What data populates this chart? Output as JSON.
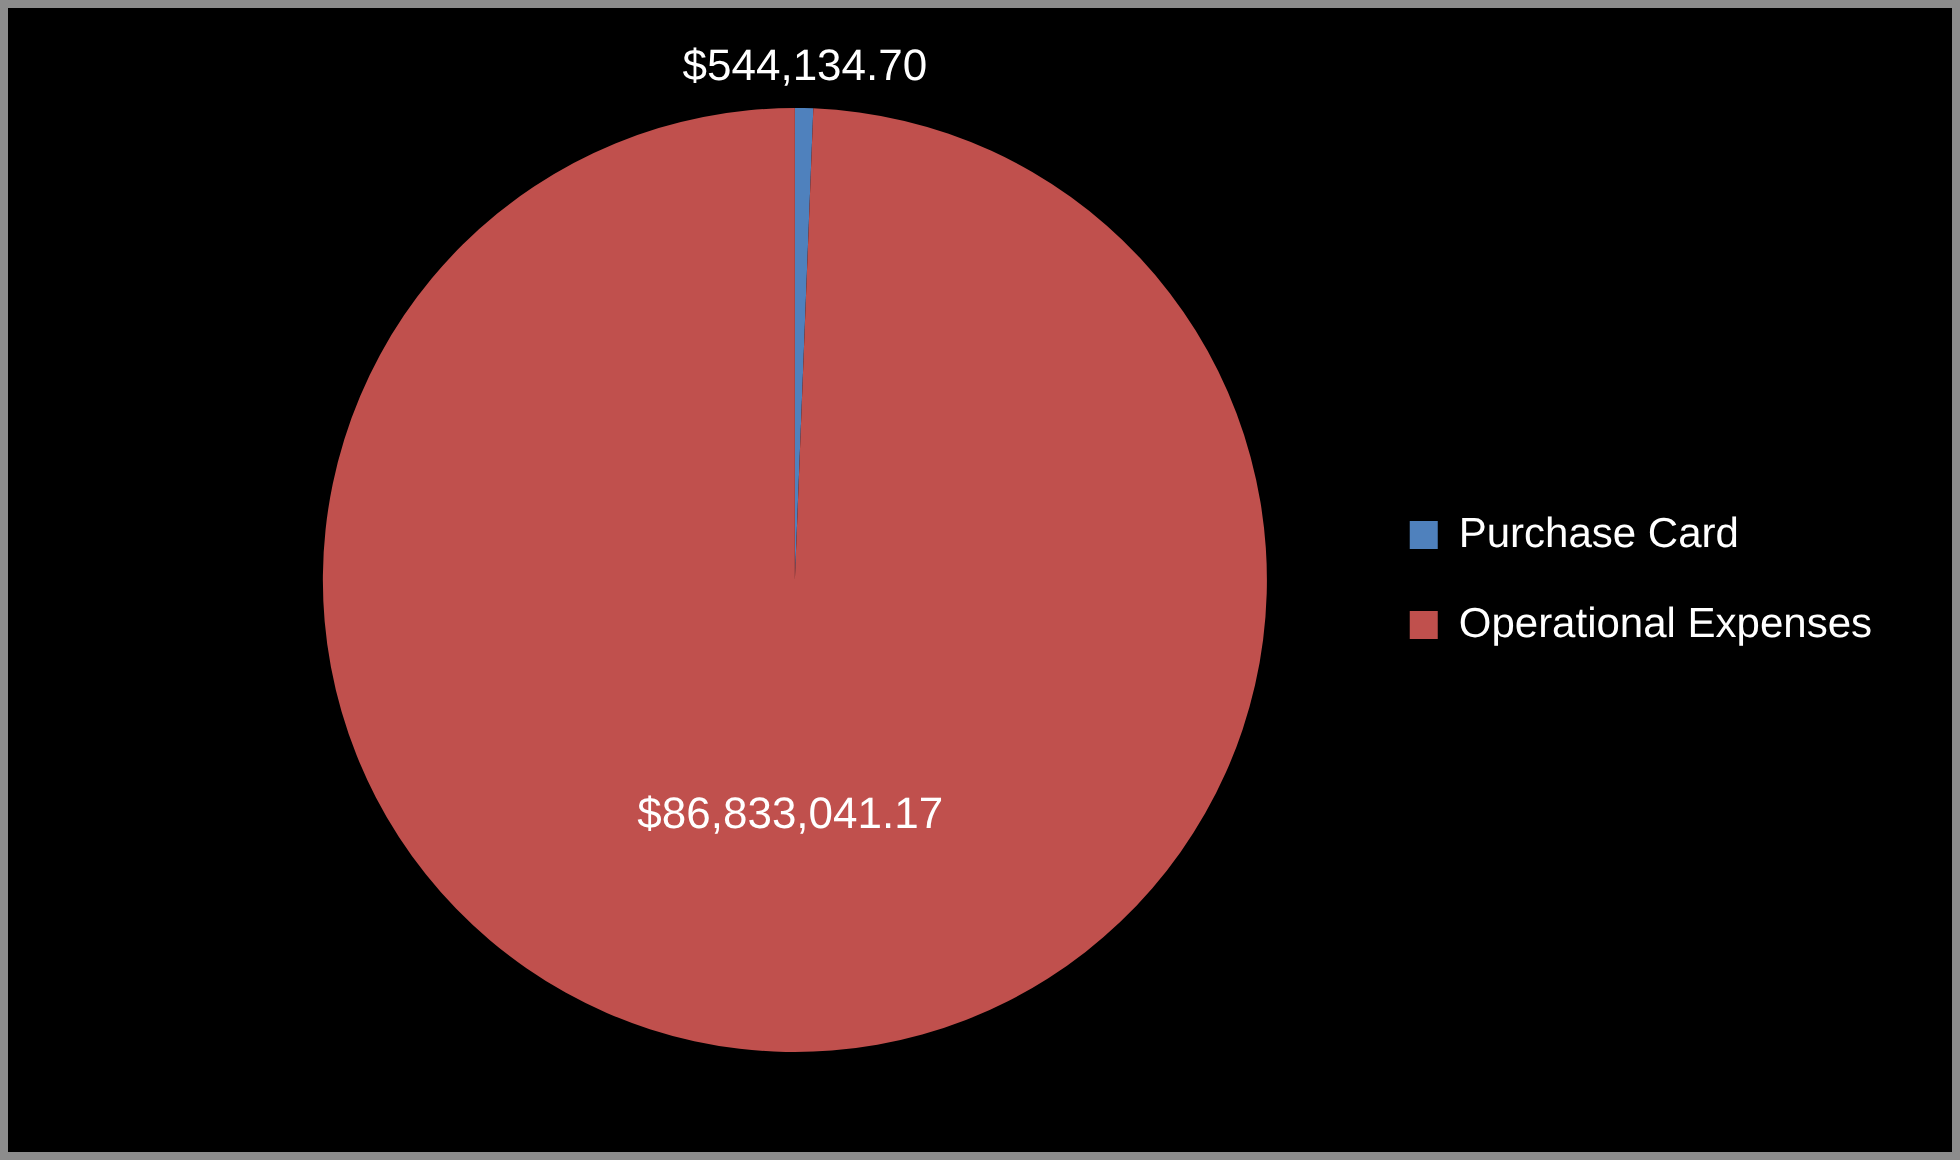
{
  "chart_data": {
    "type": "pie",
    "categories": [
      "Purchase Card",
      "Operational Expenses"
    ],
    "values": [
      544134.7,
      86833041.17
    ],
    "colors": [
      "#4f81bd",
      "#c0504d"
    ],
    "value_labels": [
      "$544,134.70",
      "$86,833,041.17"
    ],
    "legend": "right"
  }
}
